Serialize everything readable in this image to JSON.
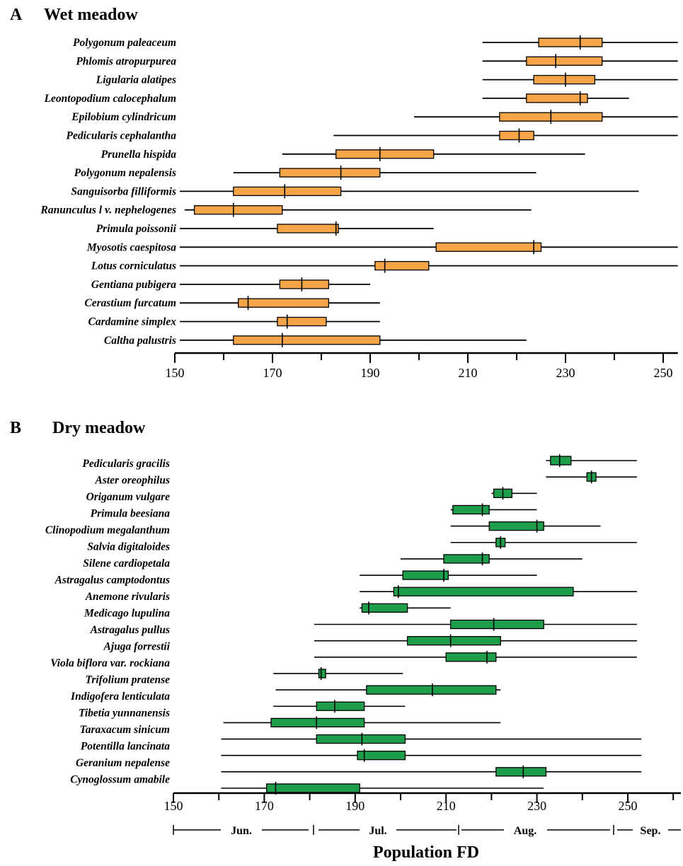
{
  "xlabel": "Population FD",
  "colors": {
    "wet": "#F5A447",
    "dry": "#1E9E4A",
    "line": "#000000"
  },
  "chart_data": [
    {
      "type": "boxplot",
      "panel_label": "A",
      "title": "Wet meadow",
      "xlim": [
        150,
        253
      ],
      "xticks": [
        150,
        170,
        190,
        210,
        230,
        250
      ],
      "species": [
        {
          "name": "Polygonum paleaceum",
          "min": 213,
          "q1": 224.5,
          "median": 233,
          "q3": 237.5,
          "max": 253
        },
        {
          "name": "Phlomis atropurpurea",
          "min": 213,
          "q1": 222,
          "median": 228,
          "q3": 237.5,
          "max": 253
        },
        {
          "name": "Ligularia alatipes",
          "min": 213,
          "q1": 223.5,
          "median": 230,
          "q3": 236,
          "max": 253
        },
        {
          "name": "Leontopodium calocephalum",
          "min": 213,
          "q1": 222,
          "median": 233,
          "q3": 234.5,
          "max": 243
        },
        {
          "name": "Epilobium cylindricum",
          "min": 199,
          "q1": 216.5,
          "median": 227,
          "q3": 237.5,
          "max": 253
        },
        {
          "name": "Pedicularis cephalantha",
          "min": 182.5,
          "q1": 216.5,
          "median": 220.5,
          "q3": 223.5,
          "max": 253
        },
        {
          "name": "Prunella hispida",
          "min": 172,
          "q1": 183,
          "median": 192,
          "q3": 203,
          "max": 234
        },
        {
          "name": "Polygonum nepalensis",
          "min": 162,
          "q1": 171.5,
          "median": 184,
          "q3": 192,
          "max": 224
        },
        {
          "name": "Sanguisorba filliformis",
          "min": 151,
          "q1": 162,
          "median": 172.5,
          "q3": 184,
          "max": 245
        },
        {
          "name": "Ranunculus l v. nephelogenes",
          "min": 152,
          "q1": 154,
          "median": 162,
          "q3": 172,
          "max": 223
        },
        {
          "name": "Primula poissonii",
          "min": 151,
          "q1": 171,
          "median": 183,
          "q3": 183.5,
          "max": 203
        },
        {
          "name": "Myosotis caespitosa",
          "min": 151,
          "q1": 203.5,
          "median": 223.5,
          "q3": 225,
          "max": 253
        },
        {
          "name": "Lotus corniculatus",
          "min": 151,
          "q1": 191,
          "median": 193,
          "q3": 202,
          "max": 253
        },
        {
          "name": "Gentiana pubigera",
          "min": 151,
          "q1": 171.5,
          "median": 176,
          "q3": 181.5,
          "max": 190
        },
        {
          "name": "Cerastium furcatum",
          "min": 151,
          "q1": 163,
          "median": 165,
          "q3": 181.5,
          "max": 192
        },
        {
          "name": "Cardamine simplex",
          "min": 151,
          "q1": 171,
          "median": 173,
          "q3": 181,
          "max": 192
        },
        {
          "name": "Caltha palustris",
          "min": 151,
          "q1": 162,
          "median": 172,
          "q3": 192,
          "max": 222
        }
      ]
    },
    {
      "type": "boxplot",
      "panel_label": "B",
      "title": "Dry meadow",
      "xlim": [
        150,
        262
      ],
      "xticks": [
        150,
        170,
        190,
        210,
        230,
        250
      ],
      "months": [
        "Jun.",
        "Jul.",
        "Aug.",
        "Sep."
      ],
      "species": [
        {
          "name": "Pedicularis gracilis",
          "min": 232,
          "q1": 233,
          "median": 235,
          "q3": 237.5,
          "max": 252
        },
        {
          "name": "Aster oreophilus",
          "min": 232,
          "q1": 241,
          "median": 242,
          "q3": 243,
          "max": 252
        },
        {
          "name": "Origanum vulgare",
          "min": 220,
          "q1": 220.5,
          "median": 222.5,
          "q3": 224.5,
          "max": 230
        },
        {
          "name": "Primula beesiana",
          "min": 211,
          "q1": 211.5,
          "median": 218,
          "q3": 219.5,
          "max": 230
        },
        {
          "name": "Clinopodium megalanthum",
          "min": 211,
          "q1": 219.5,
          "median": 230,
          "q3": 231.5,
          "max": 244
        },
        {
          "name": "Salvia digitaloides",
          "min": 211,
          "q1": 221,
          "median": 222,
          "q3": 223,
          "max": 252
        },
        {
          "name": "Silene cardiopetala",
          "min": 200,
          "q1": 209.5,
          "median": 218,
          "q3": 219.5,
          "max": 240
        },
        {
          "name": "Astragalus camptodontus",
          "min": 191,
          "q1": 200.5,
          "median": 209.5,
          "q3": 210.5,
          "max": 230
        },
        {
          "name": "Anemone rivularis",
          "min": 191,
          "q1": 198.5,
          "median": 199.5,
          "q3": 238,
          "max": 252
        },
        {
          "name": "Medicago lupulina",
          "min": 191,
          "q1": 191.5,
          "median": 193,
          "q3": 201.5,
          "max": 211
        },
        {
          "name": "Astragalus pullus",
          "min": 181,
          "q1": 211,
          "median": 220.5,
          "q3": 231.5,
          "max": 252
        },
        {
          "name": "Ajuga forrestii",
          "min": 181,
          "q1": 201.5,
          "median": 211,
          "q3": 222,
          "max": 252
        },
        {
          "name": "Viola biflora var. rockiana",
          "min": 181,
          "q1": 210,
          "median": 219,
          "q3": 221,
          "max": 252
        },
        {
          "name": "Trifolium pratense",
          "min": 172,
          "q1": 182,
          "median": 182.5,
          "q3": 183.5,
          "max": 200.5
        },
        {
          "name": "Indigofera lenticulata",
          "min": 172.5,
          "q1": 192.5,
          "median": 207,
          "q3": 221,
          "max": 222
        },
        {
          "name": "Tibetia yunnanensis",
          "min": 172,
          "q1": 181.5,
          "median": 185.5,
          "q3": 192,
          "max": 201
        },
        {
          "name": "Taraxacum sinicum",
          "min": 161,
          "q1": 171.5,
          "median": 181.5,
          "q3": 192,
          "max": 222
        },
        {
          "name": "Potentilla lancinata",
          "min": 160.5,
          "q1": 181.5,
          "median": 191.5,
          "q3": 201,
          "max": 253
        },
        {
          "name": "Geranium nepalense",
          "min": 160.5,
          "q1": 190.5,
          "median": 192,
          "q3": 201,
          "max": 253
        },
        {
          "name": "Cynoglossum amabile",
          "min": 160.5,
          "q1": 221,
          "median": 227,
          "q3": 232,
          "max": 253
        }
      ],
      "extra_row": {
        "min": 160.5,
        "q1": 170.5,
        "median": 172.5,
        "q3": 191,
        "max": 231.5
      }
    }
  ]
}
